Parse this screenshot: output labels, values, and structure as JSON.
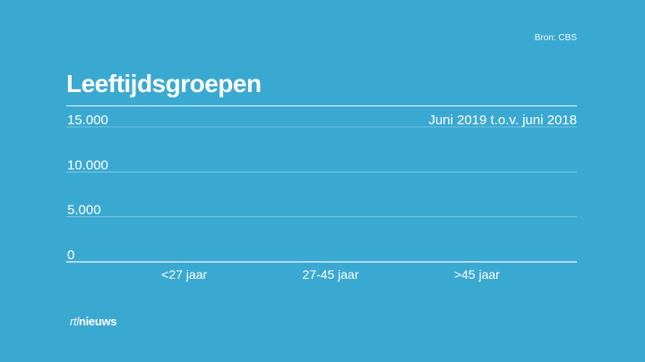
{
  "source": "Bron: CBS",
  "logo": {
    "part1": "rtl",
    "part2": "nieuws"
  },
  "chart_data": {
    "type": "bar",
    "title": "Leeftijdsgroepen",
    "subtitle": "Juni 2019 t.o.v. juni 2018",
    "categories": [
      "<27 jaar",
      "27-45 jaar",
      ">45 jaar"
    ],
    "values": [
      0,
      0,
      0
    ],
    "y_ticks": [
      {
        "value": 0,
        "label": "0"
      },
      {
        "value": 5000,
        "label": "5.000"
      },
      {
        "value": 10000,
        "label": "10.000"
      },
      {
        "value": 15000,
        "label": "15.000"
      }
    ],
    "ylim": [
      0,
      15000
    ],
    "grid": true,
    "colors": {
      "background": "#3aa9d1",
      "text": "#ffffff",
      "bar": "#ffffff"
    }
  }
}
